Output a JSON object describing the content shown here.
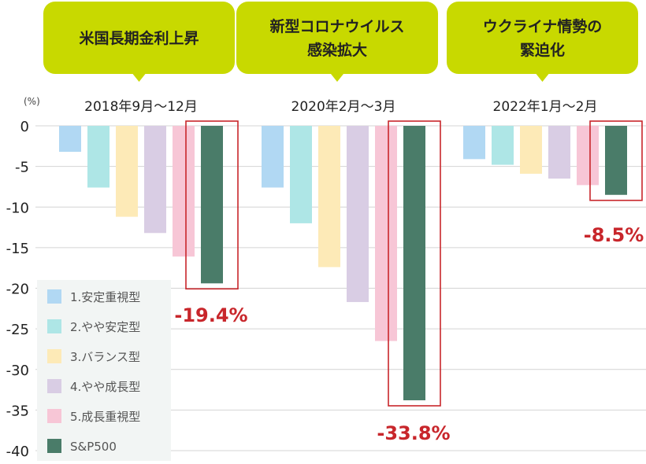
{
  "chart_data": {
    "type": "bar",
    "unit": "(%)",
    "ylim": [
      -40,
      0
    ],
    "yticks": [
      "0",
      "-5",
      "-10",
      "-15",
      "-20",
      "-25",
      "-30",
      "-35",
      "-40"
    ],
    "grid": true,
    "legend_position": "bottom-left",
    "groups": [
      {
        "event": "米国長期金利上昇",
        "period": "2018年9月～12月",
        "highlight_label": "-19.4%"
      },
      {
        "event": "新型コロナウイルス\n感染拡大",
        "period": "2020年2月～3月",
        "highlight_label": "-33.8%"
      },
      {
        "event": "ウクライナ情勢の\n緊迫化",
        "period": "2022年1月～2月",
        "highlight_label": "-8.5%"
      }
    ],
    "series": [
      {
        "name": "1.安定重視型",
        "color": "#b1d8f3",
        "values": [
          -3.2,
          -7.6,
          -4.1
        ]
      },
      {
        "name": "2.やや安定型",
        "color": "#aee6e6",
        "values": [
          -7.6,
          -12.0,
          -4.8
        ]
      },
      {
        "name": "3.バランス型",
        "color": "#fdeab7",
        "values": [
          -11.2,
          -17.4,
          -5.9
        ]
      },
      {
        "name": "4.やや成長型",
        "color": "#d9cde4",
        "values": [
          -13.2,
          -21.7,
          -6.5
        ]
      },
      {
        "name": "5.成長重視型",
        "color": "#f7c6d6",
        "values": [
          -16.1,
          -26.5,
          -7.3
        ]
      },
      {
        "name": "S&P500",
        "color": "#4a7c69",
        "values": [
          -19.4,
          -33.8,
          -8.5
        ]
      }
    ]
  },
  "colors": {
    "callout": "#c8d900",
    "highlight_box": "#c8262b",
    "highlight_label": "#c8262b",
    "legend_bg": "#f2f5f4",
    "grid": "#d4d4d4"
  }
}
